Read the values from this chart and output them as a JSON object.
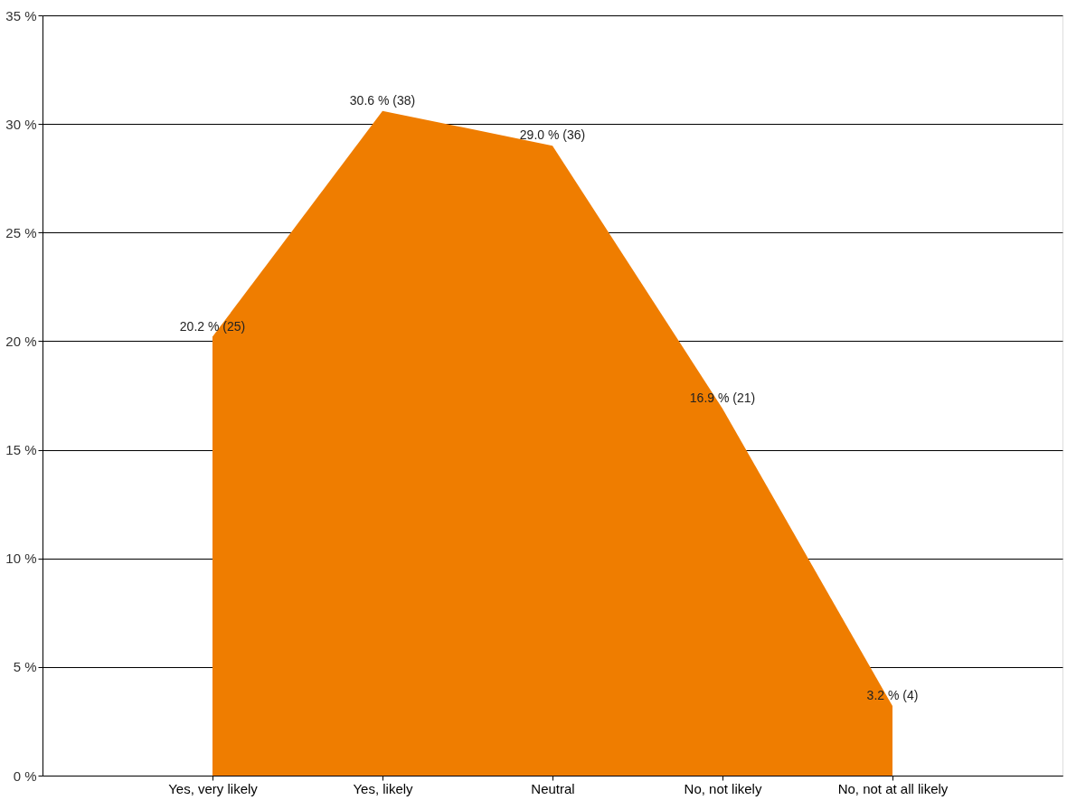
{
  "chart_data": {
    "type": "area",
    "categories": [
      "Yes, very likely",
      "Yes, likely",
      "Neutral",
      "No, not likely",
      "No, not at all likely"
    ],
    "series": [
      {
        "color": "#ef7d00",
        "values": [
          20.2,
          30.6,
          29.0,
          16.9,
          3.2
        ],
        "value_labels": [
          "20.2 % (25)",
          "30.6 % (38)",
          "29.0 % (36)",
          "16.9 % (21)",
          "3.2 % (4)"
        ]
      }
    ],
    "ylim": [
      0,
      35
    ],
    "yticks": [
      {
        "value": 0,
        "label": "0 %"
      },
      {
        "value": 5,
        "label": "5 %"
      },
      {
        "value": 10,
        "label": "10 %"
      },
      {
        "value": 15,
        "label": "15 %"
      },
      {
        "value": 20,
        "label": "20 %"
      },
      {
        "value": 25,
        "label": "25 %"
      },
      {
        "value": 30,
        "label": "30 %"
      },
      {
        "value": 35,
        "label": "35 %"
      }
    ],
    "grid": "y"
  }
}
